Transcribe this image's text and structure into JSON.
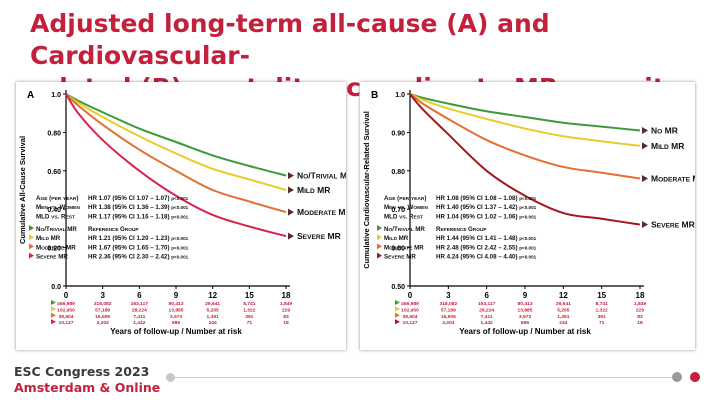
{
  "slide": {
    "title_line1": "Adjusted long-term all-cause (A) and Cardiovascular-",
    "title_line2": "related (B) mortality according to MR severity"
  },
  "footer": {
    "congress": "ESC Congress 2023",
    "location": "Amsterdam & Online"
  },
  "colors": {
    "title": "#c41f3b",
    "no_trivial": "#3a9a3a",
    "mild": "#e8cc2a",
    "moderate": "#e2702e",
    "severe": "#d8234e",
    "severe_b": "#a4161e",
    "risk_text": "#c41f3b"
  },
  "chart_data": [
    {
      "type": "line",
      "panel": "A",
      "title": "",
      "xlabel": "Years of follow-up / Number at risk",
      "ylabel": "Cumulative All-Cause Survival",
      "xlim": [
        0,
        18
      ],
      "ylim": [
        0,
        1
      ],
      "x_ticks": [
        0,
        3,
        6,
        9,
        12,
        15,
        18
      ],
      "y_ticks": [
        0.0,
        0.2,
        0.4,
        0.6,
        0.8,
        1.0
      ],
      "y_tick_labels": [
        "0.0",
        "0.20",
        "0.40",
        "0.60",
        "0.80",
        "1.0"
      ],
      "grid": false,
      "series": [
        {
          "name": "No/Trivial MR",
          "color": "#3a9a3a",
          "x": [
            0,
            1,
            3,
            6,
            9,
            12,
            15,
            18
          ],
          "y": [
            1.0,
            0.965,
            0.905,
            0.82,
            0.75,
            0.68,
            0.625,
            0.575
          ]
        },
        {
          "name": "Mild MR",
          "color": "#e8cc2a",
          "x": [
            0,
            1,
            3,
            6,
            9,
            12,
            15,
            18
          ],
          "y": [
            1.0,
            0.955,
            0.88,
            0.78,
            0.69,
            0.61,
            0.555,
            0.5
          ]
        },
        {
          "name": "Moderate MR",
          "color": "#e2702e",
          "x": [
            0,
            1,
            3,
            6,
            9,
            12,
            15,
            18
          ],
          "y": [
            1.0,
            0.94,
            0.84,
            0.71,
            0.6,
            0.5,
            0.44,
            0.385
          ]
        },
        {
          "name": "Severe MR",
          "color": "#d8234e",
          "x": [
            0,
            1,
            3,
            6,
            9,
            12,
            15,
            18
          ],
          "y": [
            1.0,
            0.9,
            0.76,
            0.6,
            0.47,
            0.37,
            0.31,
            0.26
          ]
        }
      ],
      "hr_table": [
        {
          "label": "Age (per year)",
          "value": "HR 1.07 (95% CI 1.07 – 1.07)",
          "p": "p<0.001"
        },
        {
          "label": "Men vs. Women",
          "value": "HR 1.38 (95% CI 1.36 – 1.39)",
          "p": "p<0.001"
        },
        {
          "label": "MLD vs. Rest",
          "value": "HR 1.17 (95% CI 1.16 – 1.18)",
          "p": "p<0.001"
        }
      ],
      "hr_groups": [
        {
          "label": "No/Trivial MR",
          "value": "Reference Group",
          "p": ""
        },
        {
          "label": "Mild MR",
          "value": "HR 1.21 (95% CI 1.20 – 1.23)",
          "p": "p<0.001"
        },
        {
          "label": "Moderate MR",
          "value": "HR 1.67 (95% CI 1.65 – 1.70)",
          "p": "p<0.001"
        },
        {
          "label": "Severe MR",
          "value": "HR 2.36 (95% CI 2.30 – 2.42)",
          "p": "p<0.001"
        }
      ],
      "at_risk": [
        [
          "456,989",
          "318,082",
          "163,117",
          "80,413",
          "29,641",
          "8,741",
          "1,849"
        ],
        [
          "102,950",
          "57,189",
          "28,224",
          "13,885",
          "5,205",
          "1,322",
          "229"
        ],
        [
          "38,504",
          "16,505",
          "7,411",
          "3,573",
          "1,391",
          "391",
          "83"
        ],
        [
          "10,127",
          "3,204",
          "1,442",
          "686",
          "244",
          "71",
          "18"
        ]
      ]
    },
    {
      "type": "line",
      "panel": "B",
      "title": "",
      "xlabel": "Years of follow-up / Number at risk",
      "ylabel": "Cumulative Cardiovascular-Related Survival",
      "xlim": [
        0,
        18
      ],
      "ylim": [
        0.5,
        1
      ],
      "x_ticks": [
        0,
        3,
        6,
        9,
        12,
        15,
        18
      ],
      "y_ticks": [
        0.5,
        0.6,
        0.7,
        0.8,
        0.9,
        1.0
      ],
      "y_tick_labels": [
        "0.50",
        "0.60",
        "0.70",
        "0.80",
        "0.90",
        "1.0"
      ],
      "grid": false,
      "series": [
        {
          "name": "No MR",
          "color": "#3a9a3a",
          "x": [
            0,
            1,
            3,
            6,
            9,
            12,
            15,
            18
          ],
          "y": [
            1.0,
            0.99,
            0.975,
            0.955,
            0.94,
            0.925,
            0.915,
            0.905
          ]
        },
        {
          "name": "Mild MR",
          "color": "#e8cc2a",
          "x": [
            0,
            1,
            3,
            6,
            9,
            12,
            15,
            18
          ],
          "y": [
            1.0,
            0.985,
            0.962,
            0.935,
            0.91,
            0.89,
            0.877,
            0.865
          ]
        },
        {
          "name": "Moderate MR",
          "color": "#e2702e",
          "x": [
            0,
            1,
            3,
            6,
            9,
            12,
            15,
            18
          ],
          "y": [
            1.0,
            0.975,
            0.935,
            0.88,
            0.84,
            0.81,
            0.795,
            0.78
          ]
        },
        {
          "name": "Severe MR",
          "color": "#a4161e",
          "x": [
            0,
            1,
            3,
            6,
            9,
            12,
            15,
            18
          ],
          "y": [
            1.0,
            0.96,
            0.895,
            0.8,
            0.735,
            0.69,
            0.675,
            0.66
          ]
        }
      ],
      "hr_table": [
        {
          "label": "Age (per year)",
          "value": "HR 1.08 (95% CI 1.08 – 1.08)",
          "p": "p<0.001"
        },
        {
          "label": "Men vs. Women",
          "value": "HR 1.40 (95% CI 1.37 – 1.42)",
          "p": "p<0.001"
        },
        {
          "label": "MLD vs. Rest",
          "value": "HR 1.04 (95% CI 1.02 – 1.06)",
          "p": "p<0.001"
        }
      ],
      "hr_groups": [
        {
          "label": "No/Trivial MR",
          "value": "Reference Group",
          "p": ""
        },
        {
          "label": "Mild MR",
          "value": "HR 1.44 (95% CI 1.41 – 1.48)",
          "p": "p<0.001"
        },
        {
          "label": "Moderate MR",
          "value": "HR 2.48 (95% CI 2.42 – 2.55)",
          "p": "p<0.001"
        },
        {
          "label": "Severe MR",
          "value": "HR 4.24 (95% CI 4.08 – 4.40)",
          "p": "p<0.001"
        }
      ],
      "at_risk": [
        [
          "456,989",
          "318,082",
          "163,117",
          "80,413",
          "29,641",
          "8,741",
          "1,849"
        ],
        [
          "102,950",
          "57,189",
          "28,224",
          "13,885",
          "5,205",
          "1,322",
          "229"
        ],
        [
          "38,504",
          "16,505",
          "7,411",
          "3,573",
          "1,391",
          "391",
          "83"
        ],
        [
          "10,127",
          "3,204",
          "1,442",
          "686",
          "244",
          "71",
          "18"
        ]
      ]
    }
  ]
}
